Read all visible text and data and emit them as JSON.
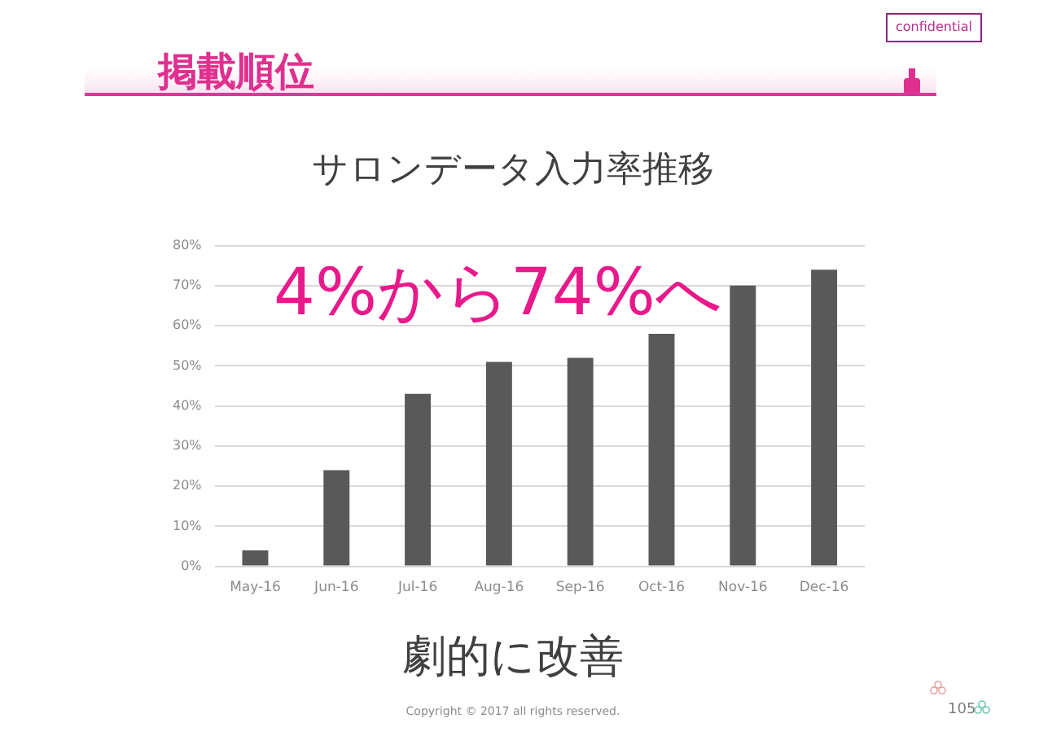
{
  "chart_data": {
    "type": "bar",
    "title": "サロンデータ入力率推移",
    "categories": [
      "May-16",
      "Jun-16",
      "Jul-16",
      "Aug-16",
      "Sep-16",
      "Oct-16",
      "Nov-16",
      "Dec-16"
    ],
    "values": [
      4,
      24,
      43,
      51,
      52,
      58,
      70,
      74
    ],
    "color": "#595959",
    "ylim": [
      0,
      80
    ],
    "yticks": [
      {
        "value": 0,
        "label": "0%"
      },
      {
        "value": 10,
        "label": "10%"
      },
      {
        "value": 20,
        "label": "20%"
      },
      {
        "value": 30,
        "label": "30%"
      },
      {
        "value": 40,
        "label": "40%"
      },
      {
        "value": 50,
        "label": "50%"
      },
      {
        "value": 60,
        "label": "60%"
      },
      {
        "value": 70,
        "label": "70%"
      },
      {
        "value": 80,
        "label": "80%"
      }
    ],
    "grid": "y",
    "annotations": [
      "掲載順位",
      "confidential",
      "4%から74%へ",
      "劇的に改善",
      "Copyright © 2017 all rights reserved.",
      "105"
    ]
  }
}
